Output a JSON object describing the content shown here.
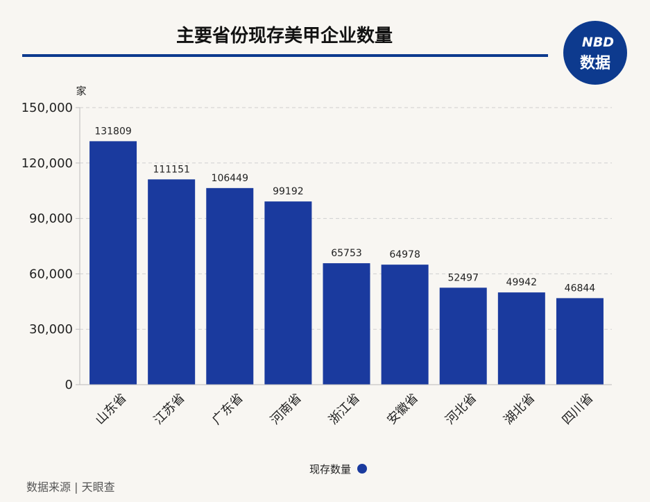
{
  "logo": {
    "line1": "NBD",
    "line2": "数据",
    "bg_color": "#0d3a8e",
    "accent_color": "#e8432a"
  },
  "source": "数据来源 | 天眼查",
  "colors": {
    "bar": "#1a3a9e",
    "title_rule": "#0d3a8e",
    "grid": "#cfcfcf"
  },
  "chart_data": {
    "type": "bar",
    "title": "主要省份现存美甲企业数量",
    "xlabel": "",
    "ylabel": "家",
    "ylim": [
      0,
      150000
    ],
    "yticks": [
      0,
      30000,
      60000,
      90000,
      120000,
      150000
    ],
    "ytick_labels": [
      "0",
      "30,000",
      "60,000",
      "90,000",
      "120,000",
      "150,000"
    ],
    "grid": true,
    "legend_position": "bottom",
    "categories": [
      "山东省",
      "江苏省",
      "广东省",
      "河南省",
      "浙江省",
      "安徽省",
      "河北省",
      "湖北省",
      "四川省"
    ],
    "series": [
      {
        "name": "现存数量",
        "values": [
          131809,
          111151,
          106449,
          99192,
          65753,
          64978,
          52497,
          49942,
          46844
        ]
      }
    ]
  }
}
